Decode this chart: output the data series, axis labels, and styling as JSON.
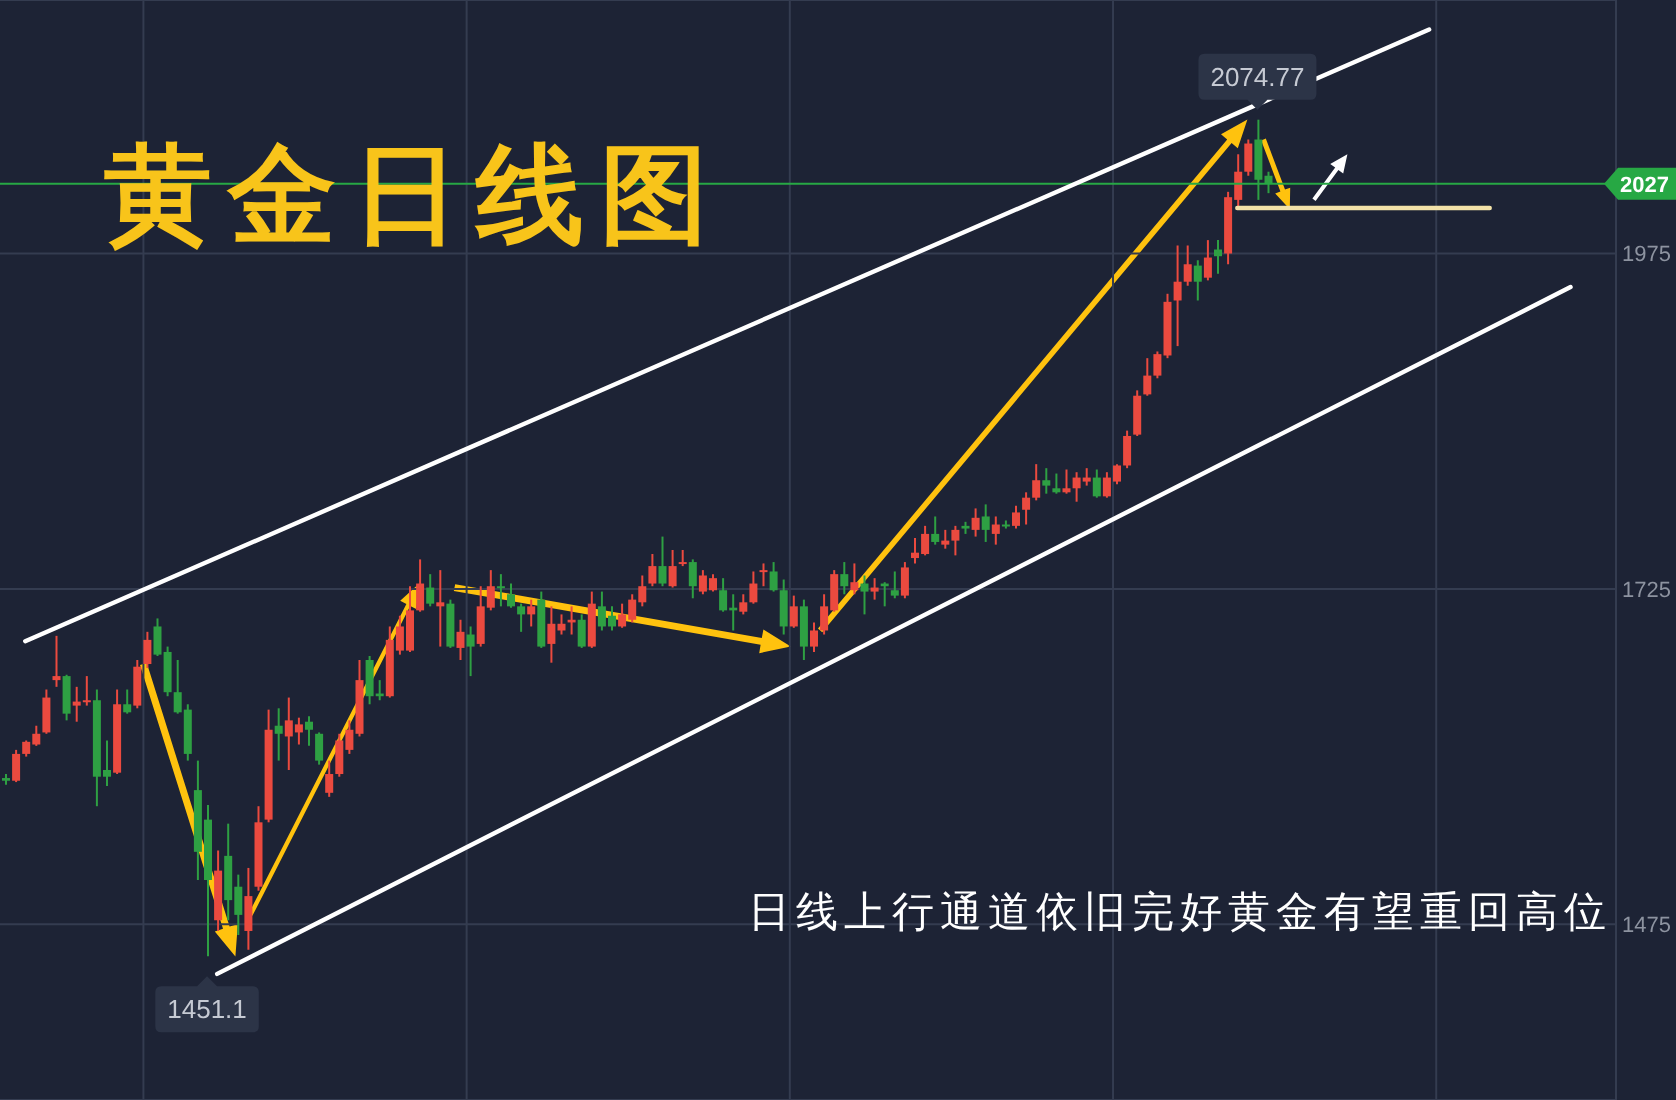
{
  "chart_data": {
    "type": "candlestick",
    "title": "黄金日线图",
    "annotations": [
      "日线上行通道依旧完好黄金有望重回高位",
      {
        "text": "2074.77",
        "y": 2074.77
      },
      {
        "text": "1451.1",
        "y": 1451.1
      }
    ],
    "categories": [
      null,
      null,
      null,
      null,
      null,
      null,
      null,
      null,
      null,
      null,
      null,
      null,
      null,
      null,
      null,
      null,
      null,
      null,
      null,
      null,
      null,
      null,
      null,
      null,
      null,
      null,
      null,
      null,
      null,
      null,
      null,
      null,
      null,
      null,
      null,
      null,
      null,
      null,
      null,
      null,
      null,
      null,
      null,
      null,
      null,
      null,
      null,
      null,
      null,
      null,
      null,
      null,
      null,
      null,
      null,
      null,
      null,
      null,
      null,
      null,
      null,
      null,
      null,
      null,
      null,
      null,
      null,
      null,
      null,
      null,
      null,
      null,
      null,
      null,
      null,
      null,
      null,
      null,
      null,
      null,
      null,
      null,
      null,
      null,
      null,
      null,
      null,
      null,
      null,
      null,
      null,
      null,
      null,
      null,
      null,
      null,
      null,
      null,
      null,
      null,
      null,
      null,
      null,
      null,
      null,
      null,
      null,
      null,
      null,
      null,
      null,
      null,
      null,
      null,
      null,
      null,
      null,
      null,
      null,
      null,
      null,
      null,
      null,
      null,
      null,
      null,
      null,
      null,
      null,
      null,
      null,
      null,
      null,
      null,
      null,
      null,
      null,
      null,
      null,
      null,
      null,
      null,
      null,
      null,
      null,
      null,
      null,
      null,
      null,
      null,
      null,
      null,
      null,
      null,
      null,
      null,
      null,
      null,
      null,
      null
    ],
    "ohlc": [
      [
        1584,
        1587,
        1579,
        1582
      ],
      [
        1582,
        1605,
        1581,
        1602
      ],
      [
        1602,
        1612,
        1600,
        1611
      ],
      [
        1609,
        1623,
        1608,
        1617
      ],
      [
        1618,
        1650,
        1617,
        1644
      ],
      [
        1657,
        1690,
        1652,
        1660
      ],
      [
        1660,
        1661,
        1627,
        1632
      ],
      [
        1638,
        1652,
        1626,
        1641
      ],
      [
        1641,
        1660,
        1638,
        1642
      ],
      [
        1642,
        1650,
        1563,
        1585
      ],
      [
        1590,
        1612,
        1578,
        1585
      ],
      [
        1588,
        1650,
        1587,
        1639
      ],
      [
        1639,
        1650,
        1632,
        1633
      ],
      [
        1638,
        1672,
        1636,
        1667
      ],
      [
        1669,
        1693,
        1666,
        1687
      ],
      [
        1697,
        1703,
        1675,
        1676
      ],
      [
        1678,
        1682,
        1645,
        1648
      ],
      [
        1648,
        1672,
        1632,
        1633
      ],
      [
        1635,
        1639,
        1597,
        1602
      ],
      [
        1575,
        1597,
        1508,
        1529
      ],
      [
        1553,
        1564,
        1451.1,
        1508
      ],
      [
        1478,
        1530,
        1470,
        1515
      ],
      [
        1526,
        1550,
        1478,
        1493
      ],
      [
        1503,
        1512,
        1467,
        1482
      ],
      [
        1470,
        1517,
        1456,
        1496
      ],
      [
        1503,
        1563,
        1500,
        1551
      ],
      [
        1553,
        1635,
        1551,
        1620
      ],
      [
        1623,
        1636,
        1597,
        1617
      ],
      [
        1615,
        1644,
        1590,
        1627
      ],
      [
        1618,
        1629,
        1609,
        1624
      ],
      [
        1626,
        1630,
        1608,
        1620
      ],
      [
        1617,
        1618,
        1594,
        1597
      ],
      [
        1573,
        1597,
        1570,
        1587
      ],
      [
        1587,
        1617,
        1585,
        1612
      ],
      [
        1605,
        1627,
        1602,
        1620
      ],
      [
        1617,
        1672,
        1615,
        1657
      ],
      [
        1672,
        1675,
        1639,
        1645
      ],
      [
        1647,
        1657,
        1642,
        1645
      ],
      [
        1645,
        1697,
        1644,
        1687
      ],
      [
        1679,
        1705,
        1676,
        1697
      ],
      [
        1679,
        1727,
        1678,
        1709
      ],
      [
        1709,
        1747,
        1708,
        1729
      ],
      [
        1726,
        1736,
        1712,
        1714
      ],
      [
        1712,
        1739,
        1682,
        1715
      ],
      [
        1714,
        1717,
        1681,
        1682
      ],
      [
        1681,
        1702,
        1672,
        1693
      ],
      [
        1691,
        1697,
        1660,
        1682
      ],
      [
        1684,
        1727,
        1682,
        1712
      ],
      [
        1711,
        1739,
        1709,
        1727
      ],
      [
        1727,
        1736,
        1712,
        1726
      ],
      [
        1721,
        1729,
        1711,
        1712
      ],
      [
        1712,
        1714,
        1693,
        1706
      ],
      [
        1706,
        1717,
        1697,
        1712
      ],
      [
        1717,
        1723,
        1681,
        1682
      ],
      [
        1684,
        1712,
        1670,
        1699
      ],
      [
        1694,
        1706,
        1691,
        1699
      ],
      [
        1700,
        1712,
        1691,
        1702
      ],
      [
        1702,
        1706,
        1681,
        1682
      ],
      [
        1682,
        1723,
        1681,
        1714
      ],
      [
        1712,
        1723,
        1694,
        1697
      ],
      [
        1705,
        1712,
        1694,
        1697
      ],
      [
        1697,
        1714,
        1696,
        1706
      ],
      [
        1702,
        1721,
        1700,
        1717
      ],
      [
        1715,
        1735,
        1712,
        1727
      ],
      [
        1729,
        1751,
        1727,
        1742
      ],
      [
        1742,
        1764,
        1727,
        1729
      ],
      [
        1727,
        1754,
        1726,
        1742
      ],
      [
        1744,
        1754,
        1742,
        1745
      ],
      [
        1745,
        1747,
        1718,
        1727
      ],
      [
        1723,
        1739,
        1721,
        1735
      ],
      [
        1724,
        1736,
        1723,
        1733
      ],
      [
        1724,
        1733,
        1708,
        1709
      ],
      [
        1711,
        1721,
        1694,
        1709
      ],
      [
        1708,
        1721,
        1706,
        1715
      ],
      [
        1715,
        1738,
        1714,
        1729
      ],
      [
        1738,
        1744,
        1727,
        1739
      ],
      [
        1738,
        1745,
        1723,
        1724
      ],
      [
        1724,
        1732,
        1691,
        1697
      ],
      [
        1697,
        1720,
        1696,
        1712
      ],
      [
        1712,
        1717,
        1672,
        1682
      ],
      [
        1682,
        1700,
        1678,
        1694
      ],
      [
        1694,
        1721,
        1691,
        1712
      ],
      [
        1709,
        1739,
        1708,
        1736
      ],
      [
        1736,
        1745,
        1721,
        1727
      ],
      [
        1724,
        1744,
        1721,
        1730
      ],
      [
        1729,
        1735,
        1706,
        1723
      ],
      [
        1723,
        1733,
        1717,
        1726
      ],
      [
        1729,
        1730,
        1712,
        1727
      ],
      [
        1724,
        1738,
        1718,
        1720
      ],
      [
        1720,
        1745,
        1718,
        1741
      ],
      [
        1748,
        1763,
        1744,
        1752
      ],
      [
        1751,
        1772,
        1750,
        1766
      ],
      [
        1766,
        1779,
        1758,
        1760
      ],
      [
        1758,
        1769,
        1755,
        1761
      ],
      [
        1761,
        1772,
        1750,
        1769
      ],
      [
        1772,
        1775,
        1766,
        1770
      ],
      [
        1769,
        1785,
        1764,
        1778
      ],
      [
        1779,
        1788,
        1760,
        1769
      ],
      [
        1766,
        1779,
        1758,
        1773
      ],
      [
        1773,
        1776,
        1770,
        1772
      ],
      [
        1772,
        1787,
        1770,
        1782
      ],
      [
        1784,
        1797,
        1773,
        1793
      ],
      [
        1793,
        1818,
        1791,
        1806
      ],
      [
        1806,
        1815,
        1796,
        1802
      ],
      [
        1800,
        1811,
        1796,
        1797
      ],
      [
        1797,
        1814,
        1796,
        1800
      ],
      [
        1800,
        1812,
        1790,
        1808
      ],
      [
        1805,
        1815,
        1802,
        1808
      ],
      [
        1808,
        1814,
        1793,
        1794
      ],
      [
        1794,
        1812,
        1793,
        1808
      ],
      [
        1805,
        1818,
        1803,
        1817
      ],
      [
        1817,
        1843,
        1815,
        1839
      ],
      [
        1840,
        1873,
        1839,
        1869
      ],
      [
        1870,
        1897,
        1869,
        1884
      ],
      [
        1884,
        1902,
        1882,
        1900
      ],
      [
        1899,
        1945,
        1897,
        1939
      ],
      [
        1940,
        1981,
        1906,
        1954
      ],
      [
        1954,
        1981,
        1951,
        1967
      ],
      [
        1966,
        1970,
        1940,
        1954
      ],
      [
        1957,
        1985,
        1955,
        1972
      ],
      [
        1978,
        1985,
        1960,
        1973
      ],
      [
        1975,
        2021,
        1967,
        2017
      ],
      [
        2015,
        2049,
        2008,
        2036
      ],
      [
        2036,
        2060,
        2033,
        2057
      ],
      [
        2060,
        2074.77,
        2015,
        2030
      ],
      [
        2033,
        2036,
        2020,
        2027
      ],
      null,
      null,
      null,
      null,
      null,
      null,
      null,
      null,
      null,
      null,
      null,
      null,
      null,
      null,
      null,
      null,
      null,
      null,
      null,
      null,
      null,
      null,
      null,
      null,
      null,
      null,
      null,
      null,
      null,
      null,
      null,
      null,
      null,
      null
    ],
    "colors": [
      "#2ea043",
      "#eb4a3f",
      "#eb4a3f",
      "#eb4a3f",
      "#eb4a3f",
      "#eb4a3f",
      "#2ea043",
      "#eb4a3f",
      "#eb4a3f",
      "#2ea043",
      "#2ea043",
      "#eb4a3f",
      "#2ea043",
      "#eb4a3f",
      "#eb4a3f",
      "#2ea043",
      "#2ea043",
      "#2ea043",
      "#2ea043",
      "#2ea043",
      "#2ea043",
      "#eb4a3f",
      "#2ea043",
      "#2ea043",
      "#eb4a3f",
      "#eb4a3f",
      "#eb4a3f",
      "#2ea043",
      "#eb4a3f",
      "#eb4a3f",
      "#2ea043",
      "#2ea043",
      "#eb4a3f",
      "#eb4a3f",
      "#eb4a3f",
      "#eb4a3f",
      "#2ea043",
      "#2ea043",
      "#eb4a3f",
      "#eb4a3f",
      "#eb4a3f",
      "#eb4a3f",
      "#2ea043",
      "#eb4a3f",
      "#2ea043",
      "#eb4a3f",
      "#2ea043",
      "#eb4a3f",
      "#eb4a3f",
      "#2ea043",
      "#2ea043",
      "#2ea043",
      "#eb4a3f",
      "#2ea043",
      "#eb4a3f",
      "#eb4a3f",
      "#eb4a3f",
      "#2ea043",
      "#eb4a3f",
      "#2ea043",
      "#2ea043",
      "#eb4a3f",
      "#eb4a3f",
      "#eb4a3f",
      "#eb4a3f",
      "#2ea043",
      "#eb4a3f",
      "#eb4a3f",
      "#2ea043",
      "#eb4a3f",
      "#eb4a3f",
      "#2ea043",
      "#2ea043",
      "#eb4a3f",
      "#eb4a3f",
      "#eb4a3f",
      "#2ea043",
      "#2ea043",
      "#eb4a3f",
      "#2ea043",
      "#eb4a3f",
      "#eb4a3f",
      "#eb4a3f",
      "#2ea043",
      "#eb4a3f",
      "#2ea043",
      "#eb4a3f",
      "#2ea043",
      "#2ea043",
      "#eb4a3f",
      "#eb4a3f",
      "#eb4a3f",
      "#2ea043",
      "#eb4a3f",
      "#eb4a3f",
      "#2ea043",
      "#eb4a3f",
      "#2ea043",
      "#eb4a3f",
      "#2ea043",
      "#eb4a3f",
      "#eb4a3f",
      "#eb4a3f",
      "#2ea043",
      "#2ea043",
      "#eb4a3f",
      "#eb4a3f",
      "#eb4a3f",
      "#2ea043",
      "#eb4a3f",
      "#eb4a3f",
      "#eb4a3f",
      "#eb4a3f",
      "#eb4a3f",
      "#eb4a3f",
      "#eb4a3f",
      "#eb4a3f",
      "#eb4a3f",
      "#2ea043",
      "#eb4a3f",
      "#2ea043",
      "#eb4a3f",
      "#eb4a3f",
      "#eb4a3f",
      "#2ea043",
      "#2ea043",
      null,
      null,
      null,
      null,
      null,
      null,
      null,
      null,
      null,
      null,
      null,
      null,
      null,
      null,
      null,
      null,
      null,
      null,
      null,
      null,
      null,
      null,
      null,
      null,
      null,
      null,
      null,
      null,
      null,
      null,
      null,
      null,
      null,
      null
    ],
    "series": [
      {
        "type": "line",
        "color": "#ffffff",
        "values": [
          null,
          null,
          1686,
          null,
          null,
          null,
          null,
          null,
          null,
          null,
          null,
          null,
          null,
          null,
          null,
          null,
          null,
          null,
          null,
          null,
          null,
          null,
          null,
          null,
          null,
          null,
          null,
          null,
          null,
          null,
          null,
          null,
          null,
          null,
          null,
          null,
          null,
          null,
          null,
          null,
          null,
          null,
          null,
          null,
          null,
          null,
          null,
          null,
          null,
          null,
          null,
          null,
          null,
          null,
          null,
          null,
          null,
          null,
          null,
          null,
          null,
          null,
          null,
          null,
          null,
          null,
          null,
          null,
          null,
          null,
          null,
          null,
          null,
          null,
          null,
          null,
          null,
          null,
          null,
          null,
          null,
          null,
          null,
          null,
          null,
          null,
          null,
          null,
          null,
          null,
          null,
          null,
          null,
          null,
          null,
          null,
          null,
          null,
          null,
          null,
          null,
          null,
          null,
          null,
          null,
          null,
          null,
          null,
          null,
          null,
          null,
          null,
          null,
          null,
          null,
          null,
          null,
          null,
          null,
          null,
          null,
          null,
          null,
          null,
          null,
          null,
          null,
          null,
          null,
          null,
          null,
          null,
          null,
          null,
          null,
          null,
          null,
          null,
          null,
          null,
          null,
          2142,
          null,
          null,
          null,
          null,
          null,
          null,
          null,
          null,
          null,
          null,
          null,
          null,
          null,
          null,
          null,
          null,
          null,
          null
        ]
      },
      {
        "type": "line",
        "color": "#ffffff",
        "values": [
          null,
          null,
          null,
          null,
          null,
          null,
          null,
          null,
          null,
          null,
          null,
          null,
          null,
          null,
          null,
          null,
          null,
          null,
          null,
          null,
          null,
          1438,
          null,
          null,
          null,
          null,
          null,
          null,
          null,
          null,
          null,
          null,
          null,
          null,
          null,
          null,
          null,
          null,
          null,
          null,
          null,
          null,
          null,
          null,
          null,
          null,
          null,
          null,
          null,
          null,
          null,
          null,
          null,
          null,
          null,
          null,
          null,
          null,
          null,
          null,
          null,
          null,
          null,
          null,
          null,
          null,
          null,
          null,
          null,
          null,
          null,
          null,
          null,
          null,
          null,
          null,
          null,
          null,
          null,
          null,
          null,
          null,
          null,
          null,
          null,
          null,
          null,
          null,
          null,
          null,
          null,
          null,
          null,
          null,
          null,
          null,
          null,
          null,
          null,
          null,
          null,
          null,
          null,
          null,
          null,
          null,
          null,
          null,
          null,
          null,
          null,
          null,
          null,
          null,
          null,
          null,
          null,
          null,
          null,
          null,
          null,
          null,
          null,
          null,
          null,
          null,
          null,
          null,
          null,
          null,
          null,
          null,
          null,
          null,
          null,
          null,
          null,
          null,
          null,
          null,
          null,
          null,
          null,
          null,
          null,
          null,
          null,
          null,
          null,
          null,
          null,
          null,
          null,
          null,
          null,
          1950,
          null,
          null,
          null,
          null
        ]
      },
      {
        "type": "line",
        "color": "#f3e2a9",
        "values": [
          null,
          null,
          null,
          null,
          null,
          null,
          null,
          null,
          null,
          null,
          null,
          null,
          null,
          null,
          null,
          null,
          null,
          null,
          null,
          null,
          null,
          null,
          null,
          null,
          null,
          null,
          null,
          null,
          null,
          null,
          null,
          null,
          null,
          null,
          null,
          null,
          null,
          null,
          null,
          null,
          null,
          null,
          null,
          null,
          null,
          null,
          null,
          null,
          null,
          null,
          null,
          null,
          null,
          null,
          null,
          null,
          null,
          null,
          null,
          null,
          null,
          null,
          null,
          null,
          null,
          null,
          null,
          null,
          null,
          null,
          null,
          null,
          null,
          null,
          null,
          null,
          null,
          null,
          null,
          null,
          null,
          null,
          null,
          null,
          null,
          null,
          null,
          null,
          null,
          null,
          null,
          null,
          null,
          null,
          null,
          null,
          null,
          null,
          null,
          null,
          null,
          null,
          null,
          null,
          null,
          null,
          null,
          null,
          null,
          null,
          null,
          null,
          null,
          null,
          null,
          null,
          null,
          null,
          null,
          null,
          null,
          null,
          2009,
          null,
          null,
          null,
          null,
          null,
          null,
          null,
          null,
          null,
          null,
          null,
          null,
          null,
          null,
          null,
          null,
          null,
          null,
          null,
          null,
          null,
          null,
          null,
          null,
          2009,
          null,
          null,
          null,
          null,
          null,
          null,
          null,
          null,
          null,
          null,
          null,
          null
        ]
      }
    ],
    "ylim": [
      1344,
      2164
    ],
    "yticks": [
      1975,
      1725,
      1475
    ],
    "tick_labels": "y",
    "grid": true,
    "ref_lines": [
      {
        "axis": "y",
        "value": 2027,
        "label": "2027",
        "color": "#27a844"
      }
    ]
  }
}
